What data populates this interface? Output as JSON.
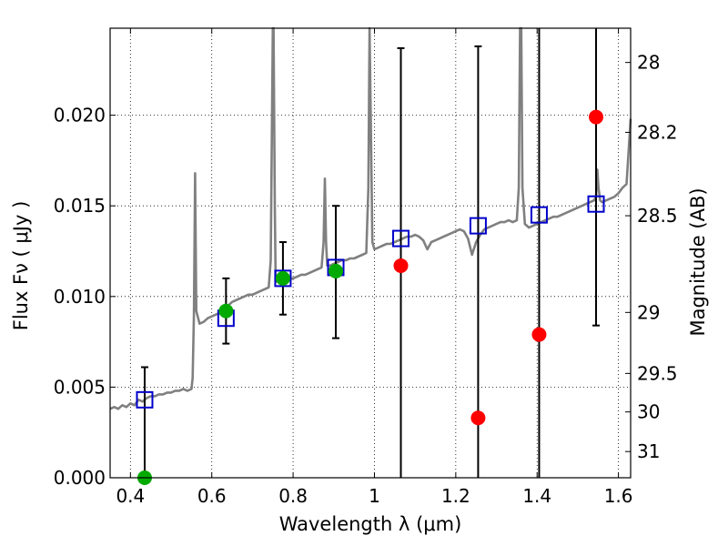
{
  "chart_data": {
    "type": "scatter",
    "title": "",
    "xlabel": "Wavelength  λ (μm)",
    "ylabel": "Flux  Fν  ( μJy )",
    "ylabel_right": "Magnitude (AB)",
    "xlim": [
      0.35,
      1.63
    ],
    "ylim": [
      0.0,
      0.0248
    ],
    "grid": true,
    "x_ticks": [
      0.4,
      0.6,
      0.8,
      1.0,
      1.2,
      1.4,
      1.6
    ],
    "x_tick_labels": [
      "0.4",
      "0.6",
      "0.8",
      "1",
      "1.2",
      "1.4",
      "1.6"
    ],
    "y_ticks": [
      0.0,
      0.005,
      0.01,
      0.015,
      0.02
    ],
    "y_tick_labels": [
      "0.000",
      "0.005",
      "0.010",
      "0.015",
      "0.020"
    ],
    "right_ticks": [
      {
        "mag": 28,
        "label": "28"
      },
      {
        "mag": 28.2,
        "label": "28.2"
      },
      {
        "mag": 28.5,
        "label": "28.5"
      },
      {
        "mag": 29,
        "label": "29"
      },
      {
        "mag": 29.5,
        "label": "29.5"
      },
      {
        "mag": 30,
        "label": "30"
      },
      {
        "mag": 31,
        "label": "31"
      }
    ],
    "colors": {
      "spectrum": "#808080",
      "model_points": "#0000cc",
      "detections": "#00aa00",
      "nondetections": "#ff0000",
      "errorbars": "#000000"
    },
    "spectrum": {
      "x": [
        0.35,
        0.36,
        0.37,
        0.38,
        0.39,
        0.4,
        0.41,
        0.42,
        0.43,
        0.44,
        0.45,
        0.46,
        0.47,
        0.48,
        0.49,
        0.5,
        0.51,
        0.52,
        0.53,
        0.54,
        0.55,
        0.553,
        0.556,
        0.559,
        0.562,
        0.57,
        0.58,
        0.59,
        0.6,
        0.61,
        0.62,
        0.63,
        0.64,
        0.65,
        0.66,
        0.67,
        0.68,
        0.69,
        0.7,
        0.71,
        0.72,
        0.73,
        0.74,
        0.745,
        0.75,
        0.752,
        0.755,
        0.757,
        0.76,
        0.77,
        0.78,
        0.79,
        0.8,
        0.81,
        0.82,
        0.83,
        0.84,
        0.85,
        0.86,
        0.87,
        0.875,
        0.878,
        0.881,
        0.884,
        0.89,
        0.9,
        0.91,
        0.92,
        0.93,
        0.94,
        0.95,
        0.96,
        0.97,
        0.98,
        0.985,
        0.988,
        0.991,
        0.995,
        1.0,
        1.01,
        1.02,
        1.03,
        1.04,
        1.05,
        1.06,
        1.07,
        1.08,
        1.09,
        1.1,
        1.11,
        1.12,
        1.13,
        1.14,
        1.15,
        1.16,
        1.17,
        1.18,
        1.19,
        1.2,
        1.21,
        1.22,
        1.23,
        1.24,
        1.25,
        1.26,
        1.27,
        1.28,
        1.29,
        1.3,
        1.31,
        1.32,
        1.33,
        1.34,
        1.35,
        1.355,
        1.358,
        1.361,
        1.364,
        1.37,
        1.38,
        1.39,
        1.4,
        1.41,
        1.42,
        1.43,
        1.44,
        1.45,
        1.46,
        1.47,
        1.48,
        1.49,
        1.5,
        1.51,
        1.52,
        1.53,
        1.54,
        1.545,
        1.548,
        1.551,
        1.555,
        1.56,
        1.57,
        1.58,
        1.59,
        1.6,
        1.61,
        1.62,
        1.63
      ],
      "y": [
        0.0038,
        0.0039,
        0.0038,
        0.004,
        0.0039,
        0.0041,
        0.004,
        0.0043,
        0.0042,
        0.0044,
        0.0045,
        0.0045,
        0.0046,
        0.0046,
        0.0047,
        0.0047,
        0.0048,
        0.0048,
        0.0049,
        0.0048,
        0.0049,
        0.0055,
        0.009,
        0.0168,
        0.0092,
        0.0085,
        0.0086,
        0.0088,
        0.0089,
        0.009,
        0.0091,
        0.0093,
        0.0095,
        0.0097,
        0.0098,
        0.0099,
        0.01,
        0.0101,
        0.0101,
        0.0102,
        0.0103,
        0.0104,
        0.0105,
        0.012,
        0.0248,
        0.0248,
        0.015,
        0.0108,
        0.0109,
        0.011,
        0.0109,
        0.011,
        0.011,
        0.0111,
        0.0112,
        0.0112,
        0.0113,
        0.0114,
        0.0115,
        0.0116,
        0.013,
        0.0165,
        0.013,
        0.0117,
        0.0117,
        0.0118,
        0.0119,
        0.012,
        0.012,
        0.0121,
        0.0121,
        0.0122,
        0.0123,
        0.0124,
        0.016,
        0.0248,
        0.02,
        0.013,
        0.0126,
        0.0127,
        0.0128,
        0.0129,
        0.0129,
        0.013,
        0.0131,
        0.0132,
        0.0133,
        0.0133,
        0.0134,
        0.0133,
        0.0131,
        0.0126,
        0.013,
        0.0131,
        0.0132,
        0.0133,
        0.0134,
        0.0135,
        0.0136,
        0.0137,
        0.0136,
        0.0132,
        0.0123,
        0.013,
        0.0134,
        0.0137,
        0.0138,
        0.0139,
        0.014,
        0.0141,
        0.0141,
        0.0142,
        0.0141,
        0.0142,
        0.016,
        0.0248,
        0.0248,
        0.016,
        0.014,
        0.0138,
        0.0139,
        0.014,
        0.0141,
        0.0142,
        0.0143,
        0.0144,
        0.0144,
        0.0145,
        0.0146,
        0.0147,
        0.0148,
        0.0149,
        0.015,
        0.0151,
        0.0152,
        0.0153,
        0.0155,
        0.017,
        0.016,
        0.0153,
        0.0152,
        0.0153,
        0.0154,
        0.0155,
        0.0157,
        0.016,
        0.0162,
        0.0198
      ]
    },
    "model_points": {
      "x": [
        0.435,
        0.635,
        0.775,
        0.905,
        1.065,
        1.255,
        1.405,
        1.545
      ],
      "y": [
        0.0043,
        0.0088,
        0.011,
        0.0116,
        0.0132,
        0.0139,
        0.0145,
        0.0151
      ]
    },
    "detections": {
      "x": [
        0.435,
        0.635,
        0.775,
        0.905
      ],
      "y": [
        0.0,
        0.0092,
        0.011,
        0.0114
      ],
      "yerr_low": [
        0.0,
        0.0074,
        0.009,
        0.0077
      ],
      "yerr_high": [
        0.0061,
        0.011,
        0.013,
        0.015
      ]
    },
    "nondetections": {
      "x": [
        1.065,
        1.255,
        1.405,
        1.545
      ],
      "y": [
        0.0117,
        0.0033,
        0.0079,
        0.0199
      ],
      "yerr_low": [
        0.0,
        0.0,
        0.0,
        0.0084
      ],
      "yerr_high": [
        0.0237,
        0.0238,
        0.0248,
        0.0248
      ]
    }
  }
}
